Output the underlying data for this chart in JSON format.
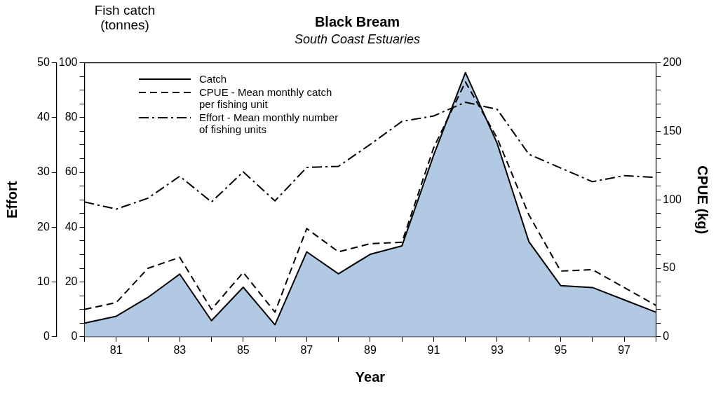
{
  "chart_data": {
    "type": "line",
    "title": "Black Bream",
    "subtitle": "South Coast Estuaries",
    "xlabel": "Year",
    "ylabel": "Fish catch (tonnes)",
    "y2label": "CPUE (kg)",
    "y3label": "Effort",
    "x": [
      80,
      81,
      82,
      83,
      84,
      85,
      86,
      87,
      88,
      89,
      90,
      91,
      92,
      93,
      94,
      95,
      96,
      97,
      98
    ],
    "xlim": [
      80,
      98
    ],
    "xticks": [
      {
        "value": 80,
        "label": null
      },
      81,
      {
        "value": 82,
        "label": null
      },
      83,
      {
        "value": 84,
        "label": null
      },
      85,
      {
        "value": 86,
        "label": null
      },
      87,
      {
        "value": 88,
        "label": null
      },
      89,
      {
        "value": 90,
        "label": null
      },
      91,
      {
        "value": 92,
        "label": null
      },
      93,
      {
        "value": 94,
        "label": null
      },
      95,
      {
        "value": 96,
        "label": null
      },
      97,
      {
        "value": 98,
        "label": null
      }
    ],
    "ylim": [
      0,
      100
    ],
    "yticks": [
      0,
      {
        "value": 5,
        "label": null
      },
      {
        "value": 10,
        "label": null
      },
      {
        "value": 15,
        "label": null
      },
      20,
      {
        "value": 25,
        "label": null
      },
      {
        "value": 30,
        "label": null
      },
      {
        "value": 35,
        "label": null
      },
      40,
      {
        "value": 45,
        "label": null
      },
      {
        "value": 50,
        "label": null
      },
      {
        "value": 55,
        "label": null
      },
      60,
      {
        "value": 65,
        "label": null
      },
      {
        "value": 70,
        "label": null
      },
      {
        "value": 75,
        "label": null
      },
      80,
      {
        "value": 85,
        "label": null
      },
      {
        "value": 90,
        "label": null
      },
      {
        "value": 95,
        "label": null
      },
      100
    ],
    "y2lim": [
      0,
      200
    ],
    "y2ticks": [
      0,
      {
        "value": 10,
        "label": null
      },
      {
        "value": 20,
        "label": null
      },
      {
        "value": 30,
        "label": null
      },
      {
        "value": 40,
        "label": null
      },
      50,
      {
        "value": 60,
        "label": null
      },
      {
        "value": 70,
        "label": null
      },
      {
        "value": 80,
        "label": null
      },
      {
        "value": 90,
        "label": null
      },
      100,
      {
        "value": 110,
        "label": null
      },
      {
        "value": 120,
        "label": null
      },
      {
        "value": 130,
        "label": null
      },
      {
        "value": 140,
        "label": null
      },
      150,
      {
        "value": 160,
        "label": null
      },
      {
        "value": 170,
        "label": null
      },
      {
        "value": 180,
        "label": null
      },
      {
        "value": 190,
        "label": null
      },
      200
    ],
    "y3lim": [
      0,
      50
    ],
    "y3ticks": [
      0,
      10,
      20,
      30,
      40,
      50
    ],
    "series": [
      {
        "name": "Catch",
        "type": "area",
        "color": "#b2c9e3",
        "line_style": "solid",
        "values": [
          5.0,
          7.5,
          14.4,
          22.9,
          5.9,
          18.1,
          4.4,
          31.0,
          23.0,
          30.1,
          33.2,
          66.3,
          96.4,
          70.6,
          34.7,
          18.7,
          18.0,
          13.5,
          9.0
        ]
      },
      {
        "name": "CPUE - Mean monthly catch per fishing unit",
        "type": "line",
        "axis": "y2",
        "color": "#000000",
        "line_style": "dashed",
        "values": [
          20,
          25,
          50,
          58,
          20,
          47,
          18,
          79,
          62,
          68,
          69,
          138,
          186,
          145,
          89,
          48,
          49,
          36,
          23
        ]
      },
      {
        "name": "Effort - Mean monthly number of fishing units",
        "type": "line",
        "axis": "y3",
        "color": "#000000",
        "line_style": "dashdot",
        "values": [
          24.6,
          23.3,
          25.3,
          29.3,
          24.6,
          30.1,
          24.8,
          30.9,
          31.1,
          35.1,
          39.3,
          40.3,
          42.8,
          41.5,
          33.3,
          30.8,
          28.3,
          29.4,
          29.1
        ]
      }
    ],
    "legend": "top left",
    "grid": false,
    "marker": "none"
  }
}
